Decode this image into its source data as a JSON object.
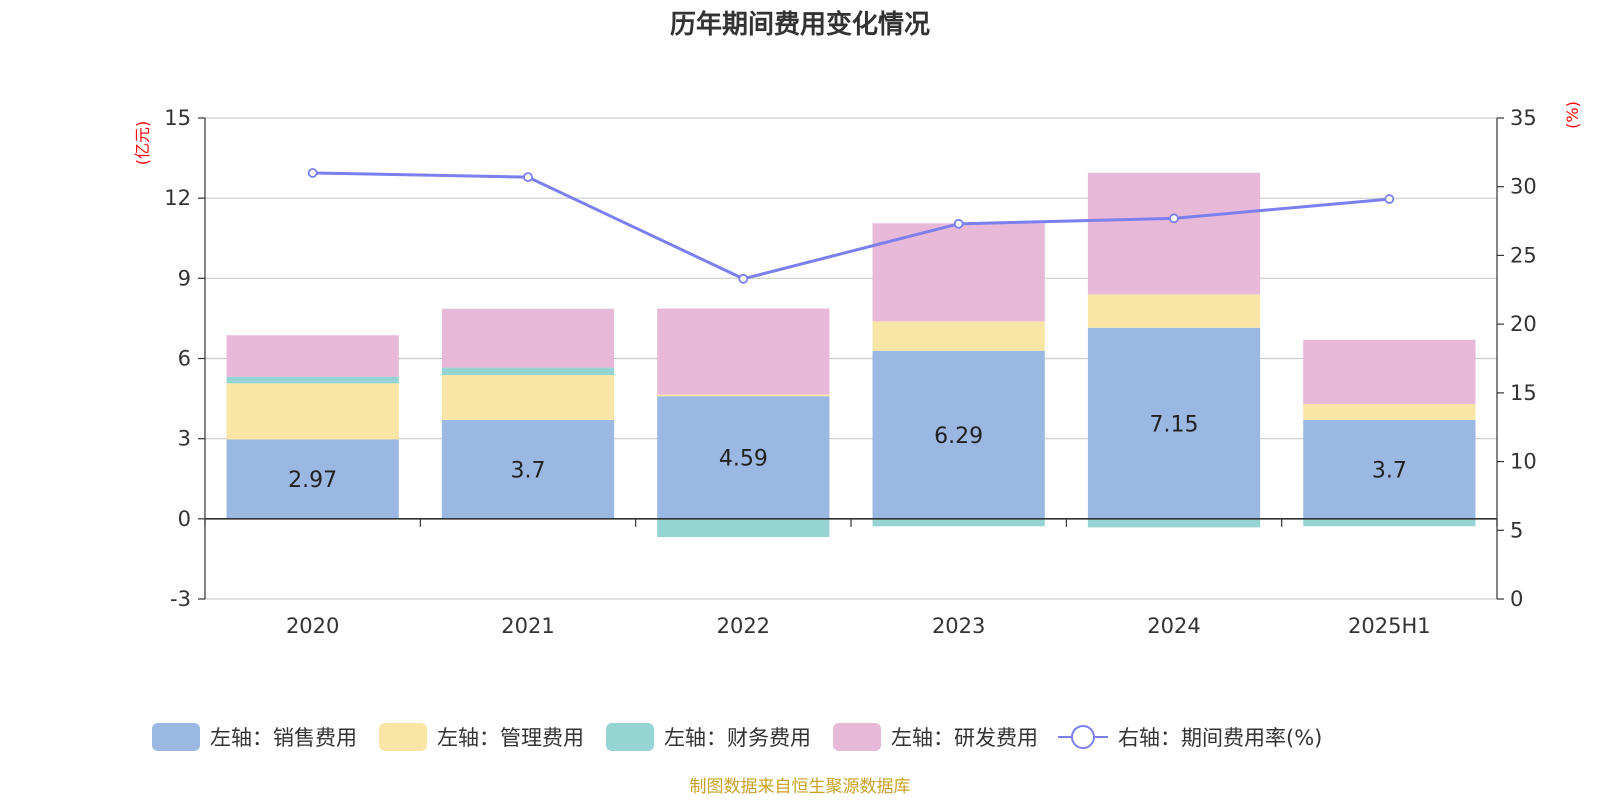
{
  "chart_data": {
    "type": "bar",
    "title": "历年期间费用变化情况",
    "categories": [
      "2020",
      "2021",
      "2022",
      "2023",
      "2024",
      "2025H1"
    ],
    "left_axis": {
      "unit": "(亿元)",
      "ylim": [
        -3,
        15
      ],
      "ticks": [
        -3,
        0,
        3,
        6,
        9,
        12,
        15
      ]
    },
    "right_axis": {
      "unit": "(%)",
      "ylim": [
        0,
        35
      ],
      "ticks": [
        0,
        5,
        10,
        15,
        20,
        25,
        30,
        35
      ]
    },
    "series": [
      {
        "name": "左轴：销售费用",
        "type": "bar",
        "color": "#9bb8e3",
        "values": [
          2.97,
          3.7,
          4.59,
          6.29,
          7.15,
          3.7
        ],
        "labels": [
          "2.97",
          "3.7",
          "4.59",
          "6.29",
          "7.15",
          "3.7"
        ]
      },
      {
        "name": "左轴：管理费用",
        "type": "bar",
        "color": "#f9e6a6",
        "values": [
          2.1,
          1.68,
          0.06,
          1.1,
          1.25,
          0.6
        ]
      },
      {
        "name": "左轴：财务费用",
        "type": "bar",
        "color": "#96d4d4",
        "values": [
          0.25,
          0.28,
          -0.68,
          -0.28,
          -0.32,
          -0.28
        ]
      },
      {
        "name": "左轴：研发费用",
        "type": "bar",
        "color": "#e8b8d9",
        "values": [
          1.55,
          2.2,
          3.22,
          3.67,
          4.55,
          2.4
        ]
      },
      {
        "name": "右轴：期间费用率(%)",
        "type": "line",
        "axis": "right",
        "color": "#7b7fef",
        "values": [
          31.0,
          30.7,
          23.3,
          27.3,
          27.7,
          29.1
        ]
      }
    ],
    "legend_position": "bottom",
    "grid": true
  },
  "footer": {
    "source": "制图数据来自恒生聚源数据库"
  }
}
